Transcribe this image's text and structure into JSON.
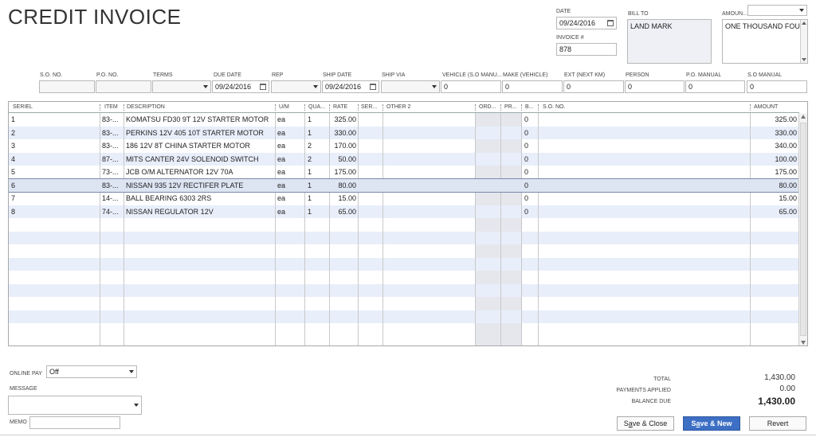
{
  "title": "CREDIT INVOICE",
  "header": {
    "date_label": "DATE",
    "date_value": "09/24/2016",
    "invoice_label": "INVOICE #",
    "invoice_value": "878",
    "bill_to_label": "BILL TO",
    "bill_to_value": "LAND MARK",
    "amount_label": "AMOUN...",
    "amount_value": "ONE THOUSAND FOUR H",
    "top_dropdown_value": ""
  },
  "fields": {
    "so_no": {
      "label": "S.O. NO.",
      "value": ""
    },
    "po_no": {
      "label": "P.O. NO.",
      "value": ""
    },
    "terms": {
      "label": "TERMS",
      "value": ""
    },
    "due_date": {
      "label": "DUE DATE",
      "value": "09/24/2016"
    },
    "rep": {
      "label": "REP",
      "value": ""
    },
    "ship_date": {
      "label": "SHIP DATE",
      "value": "09/24/2016"
    },
    "ship_via": {
      "label": "SHIP VIA",
      "value": ""
    },
    "vehicle": {
      "label": "VEHICLE (S.O MANU...",
      "value": "0"
    },
    "make": {
      "label": "MAKE (VEHICLE)",
      "value": "0"
    },
    "ext": {
      "label": "EXT (NEXT KM)",
      "value": "0"
    },
    "person": {
      "label": "PERSON",
      "value": "0"
    },
    "po_manual": {
      "label": "P.O. MANUAL",
      "value": "0"
    },
    "so_manual": {
      "label": "S.O MANUAL",
      "value": "0"
    }
  },
  "table": {
    "columns": [
      "SERIEL",
      "ITEM",
      "DESCRIPTION",
      "U/M",
      "QUA...",
      "RATE",
      "SER...",
      "OTHER 2",
      "ORD...",
      "PR...",
      "B...",
      "S.O. NO.",
      "AMOUNT"
    ],
    "rows": [
      {
        "serial": "1",
        "item": "83-...",
        "description": "KOMATSU FD30 9T 12V STARTER MOTOR",
        "um": "ea",
        "qty": "1",
        "rate": "325.00",
        "b": "0",
        "amount": "325.00"
      },
      {
        "serial": "2",
        "item": "83-...",
        "description": "PERKINS 12V 405 10T STARTER MOTOR",
        "um": "ea",
        "qty": "1",
        "rate": "330.00",
        "b": "0",
        "amount": "330.00"
      },
      {
        "serial": "3",
        "item": "83-...",
        "description": "186 12V 8T CHINA STARTER MOTOR",
        "um": "ea",
        "qty": "2",
        "rate": "170.00",
        "b": "0",
        "amount": "340.00"
      },
      {
        "serial": "4",
        "item": "87-...",
        "description": "MITS CANTER 24V SOLENOID SWITCH",
        "um": "ea",
        "qty": "2",
        "rate": "50.00",
        "b": "0",
        "amount": "100.00"
      },
      {
        "serial": "5",
        "item": "73-...",
        "description": "JCB O/M ALTERNATOR 12V 70A",
        "um": "ea",
        "qty": "1",
        "rate": "175.00",
        "b": "0",
        "amount": "175.00"
      },
      {
        "serial": "6",
        "item": "83-...",
        "description": "NISSAN  935 12V RECTIFER PLATE",
        "um": "ea",
        "qty": "1",
        "rate": "80.00",
        "b": "0",
        "amount": "80.00"
      },
      {
        "serial": "7",
        "item": "14-...",
        "description": "BALL BEARING 6303 2RS",
        "um": "ea",
        "qty": "1",
        "rate": "15.00",
        "b": "0",
        "amount": "15.00"
      },
      {
        "serial": "8",
        "item": "74-...",
        "description": "NISSAN REGULATOR 12V",
        "um": "ea",
        "qty": "1",
        "rate": "65.00",
        "b": "0",
        "amount": "65.00"
      }
    ]
  },
  "footer": {
    "online_pay_label": "ONLINE PAY",
    "online_pay_value": "Off",
    "message_label": "MESSAGE",
    "memo_label": "MEMO",
    "total_label": "TOTAL",
    "total_value": "1,430.00",
    "payments_label": "PAYMENTS APPLIED",
    "payments_value": "0.00",
    "balance_label": "BALANCE DUE",
    "balance_value": "1,430.00"
  },
  "buttons": {
    "save_close_pre": "S",
    "save_close_ul": "a",
    "save_close_post": "ve & Close",
    "save_new_pre": "S",
    "save_new_ul": "a",
    "save_new_post": "ve & New",
    "revert": "Revert"
  }
}
